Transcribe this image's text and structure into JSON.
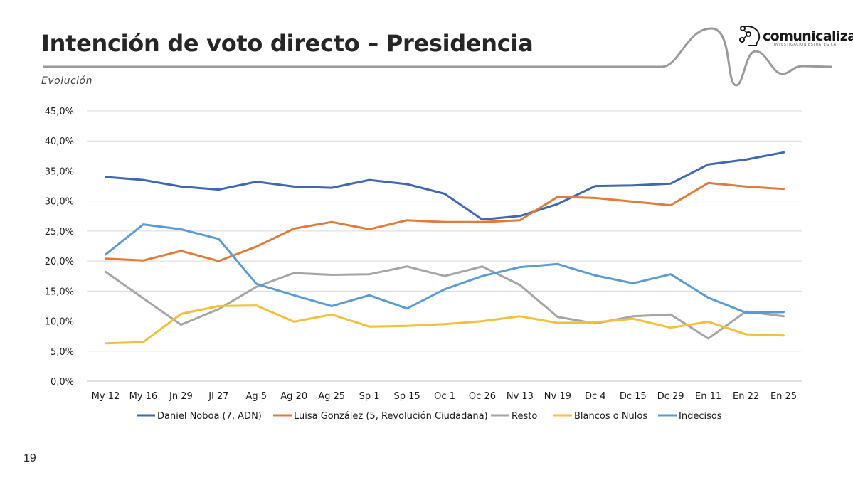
{
  "header": {
    "title": "Intención de voto directo – Presidencia",
    "subtitle": "Evolución"
  },
  "brand": {
    "name": "comunicaliza",
    "tagline": "INVESTIGACIÓN ESTRATÉGICA",
    "logo_icon": "network-head-icon"
  },
  "footer": {
    "page_number": "19"
  },
  "colors": {
    "deco_line": "#9a9a9a",
    "grid": "#d9d9d9"
  },
  "chart_data": {
    "type": "line",
    "title": "",
    "xlabel": "",
    "ylabel": "",
    "ylim": [
      0,
      45
    ],
    "yticks": [
      0,
      5,
      10,
      15,
      20,
      25,
      30,
      35,
      40,
      45
    ],
    "ytick_labels": [
      "0,0%",
      "5,0%",
      "10,0%",
      "15,0%",
      "20,0%",
      "25,0%",
      "30,0%",
      "35,0%",
      "40,0%",
      "45,0%"
    ],
    "grid": true,
    "legend_position": "bottom",
    "categories": [
      "My 12",
      "My 16",
      "Jn 29",
      "Jl 27",
      "Ag 5",
      "Ag 20",
      "Ag 25",
      "Sp 1",
      "Sp 15",
      "Oc 1",
      "Oc 26",
      "Nv 13",
      "Nv 19",
      "Dc 4",
      "Dc 15",
      "Dc 29",
      "En 11",
      "En 22",
      "En 25"
    ],
    "series": [
      {
        "name": "Daniel Noboa (7, ADN)",
        "color": "#4068b2",
        "values": [
          34.0,
          33.5,
          32.4,
          31.9,
          33.2,
          32.4,
          32.2,
          33.5,
          32.8,
          31.2,
          26.9,
          27.5,
          29.5,
          32.5,
          32.6,
          32.9,
          36.1,
          36.9,
          38.1
        ]
      },
      {
        "name": "Luisa González (5, Revolución Ciudadana)",
        "color": "#e07b39",
        "values": [
          20.4,
          20.1,
          21.7,
          20.0,
          22.4,
          25.4,
          26.5,
          25.3,
          26.8,
          26.5,
          26.5,
          26.8,
          30.7,
          30.5,
          29.9,
          29.3,
          33.0,
          32.4,
          32.0
        ]
      },
      {
        "name": "Resto",
        "color": "#a5a5a5",
        "values": [
          18.2,
          13.8,
          9.4,
          12.0,
          15.7,
          18.0,
          17.7,
          17.8,
          19.1,
          17.5,
          19.1,
          16.0,
          10.7,
          9.6,
          10.8,
          11.1,
          7.1,
          11.6,
          10.8
        ]
      },
      {
        "name": "Blancos o Nulos",
        "color": "#f4bf3a",
        "values": [
          6.3,
          6.5,
          11.2,
          12.5,
          12.6,
          9.9,
          11.1,
          9.1,
          9.2,
          9.5,
          10.0,
          10.8,
          9.7,
          9.8,
          10.4,
          8.9,
          9.9,
          7.8,
          7.6
        ]
      },
      {
        "name": "Indecisos",
        "color": "#5b9bd5",
        "values": [
          21.1,
          26.1,
          25.3,
          23.7,
          16.2,
          14.3,
          12.5,
          14.3,
          12.1,
          15.3,
          17.5,
          19.0,
          19.5,
          17.6,
          16.3,
          17.8,
          13.9,
          11.4,
          11.5
        ]
      }
    ]
  }
}
